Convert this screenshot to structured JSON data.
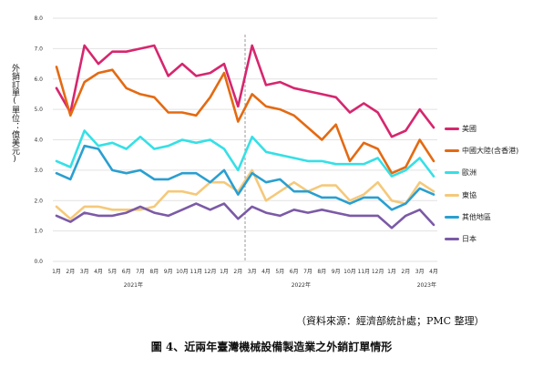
{
  "chart_data": {
    "type": "line",
    "title": "",
    "ylabel": "外銷訂單(單位：億美元)",
    "ylim": [
      0,
      8
    ],
    "y_ticks": [
      "0.0",
      "1.0",
      "2.0",
      "3.0",
      "4.0",
      "5.0",
      "6.0",
      "7.0",
      "8.0"
    ],
    "x": [
      "1月",
      "2月",
      "3月",
      "4月",
      "5月",
      "6月",
      "7月",
      "8月",
      "9月",
      "10月",
      "11月",
      "12月",
      "1月",
      "2月",
      "3月",
      "4月",
      "5月",
      "6月",
      "7月",
      "8月",
      "9月",
      "10月",
      "11月",
      "12月",
      "1月",
      "2月",
      "3月",
      "4月"
    ],
    "year_labels": [
      {
        "label": "2021年",
        "at_index": 5.5
      },
      {
        "label": "2022年",
        "at_index": 17.5
      },
      {
        "label": "2023年",
        "at_index": 26.5
      }
    ],
    "divider_after_index": 13.5,
    "grid": true,
    "legend_position": "right",
    "series": [
      {
        "name": "美國",
        "color": "#d6266e",
        "values": [
          5.7,
          4.9,
          7.1,
          6.5,
          6.9,
          6.9,
          7.0,
          7.1,
          6.1,
          6.5,
          6.1,
          6.2,
          6.5,
          5.1,
          7.1,
          5.8,
          5.9,
          5.7,
          5.6,
          5.5,
          5.4,
          4.9,
          5.2,
          4.9,
          4.1,
          4.3,
          5.0,
          4.4
        ]
      },
      {
        "name": "中國大陸(含香港)",
        "color": "#e46a12",
        "values": [
          6.4,
          4.8,
          5.9,
          6.2,
          6.3,
          5.7,
          5.5,
          5.4,
          4.9,
          4.9,
          4.8,
          5.4,
          6.2,
          4.6,
          5.5,
          5.1,
          5.0,
          4.8,
          4.4,
          4.0,
          4.5,
          3.3,
          3.9,
          3.7,
          2.9,
          3.1,
          4.0,
          3.3
        ]
      },
      {
        "name": "歐洲",
        "color": "#35e0e6",
        "values": [
          3.3,
          3.1,
          4.3,
          3.8,
          3.9,
          3.7,
          4.1,
          3.7,
          3.8,
          4.0,
          3.9,
          4.0,
          3.7,
          3.0,
          4.1,
          3.6,
          3.5,
          3.4,
          3.3,
          3.3,
          3.2,
          3.2,
          3.2,
          3.4,
          2.8,
          3.0,
          3.4,
          2.8
        ]
      },
      {
        "name": "東協",
        "color": "#f5c97a",
        "values": [
          1.8,
          1.4,
          1.8,
          1.8,
          1.7,
          1.7,
          1.7,
          1.8,
          2.3,
          2.3,
          2.2,
          2.6,
          2.6,
          2.3,
          3.0,
          2.0,
          2.3,
          2.6,
          2.3,
          2.5,
          2.5,
          2.0,
          2.2,
          2.6,
          2.0,
          1.9,
          2.6,
          2.3
        ]
      },
      {
        "name": "其他地區",
        "color": "#2a9fd0",
        "values": [
          2.9,
          2.7,
          3.8,
          3.7,
          3.0,
          2.9,
          3.0,
          2.7,
          2.7,
          2.9,
          2.9,
          2.6,
          3.0,
          2.2,
          2.9,
          2.6,
          2.7,
          2.3,
          2.3,
          2.1,
          2.1,
          1.9,
          2.1,
          2.1,
          1.7,
          1.9,
          2.4,
          2.2
        ]
      },
      {
        "name": "日本",
        "color": "#7b5aa6",
        "values": [
          1.5,
          1.3,
          1.6,
          1.5,
          1.5,
          1.6,
          1.8,
          1.6,
          1.5,
          1.7,
          1.9,
          1.7,
          1.9,
          1.4,
          1.8,
          1.6,
          1.5,
          1.7,
          1.6,
          1.7,
          1.6,
          1.5,
          1.5,
          1.5,
          1.1,
          1.5,
          1.7,
          1.2
        ]
      }
    ]
  },
  "source_note": "（資料來源：經濟部統計處；PMC 整理）",
  "caption": "圖 4、近兩年臺灣機械設備製造業之外銷訂單情形"
}
